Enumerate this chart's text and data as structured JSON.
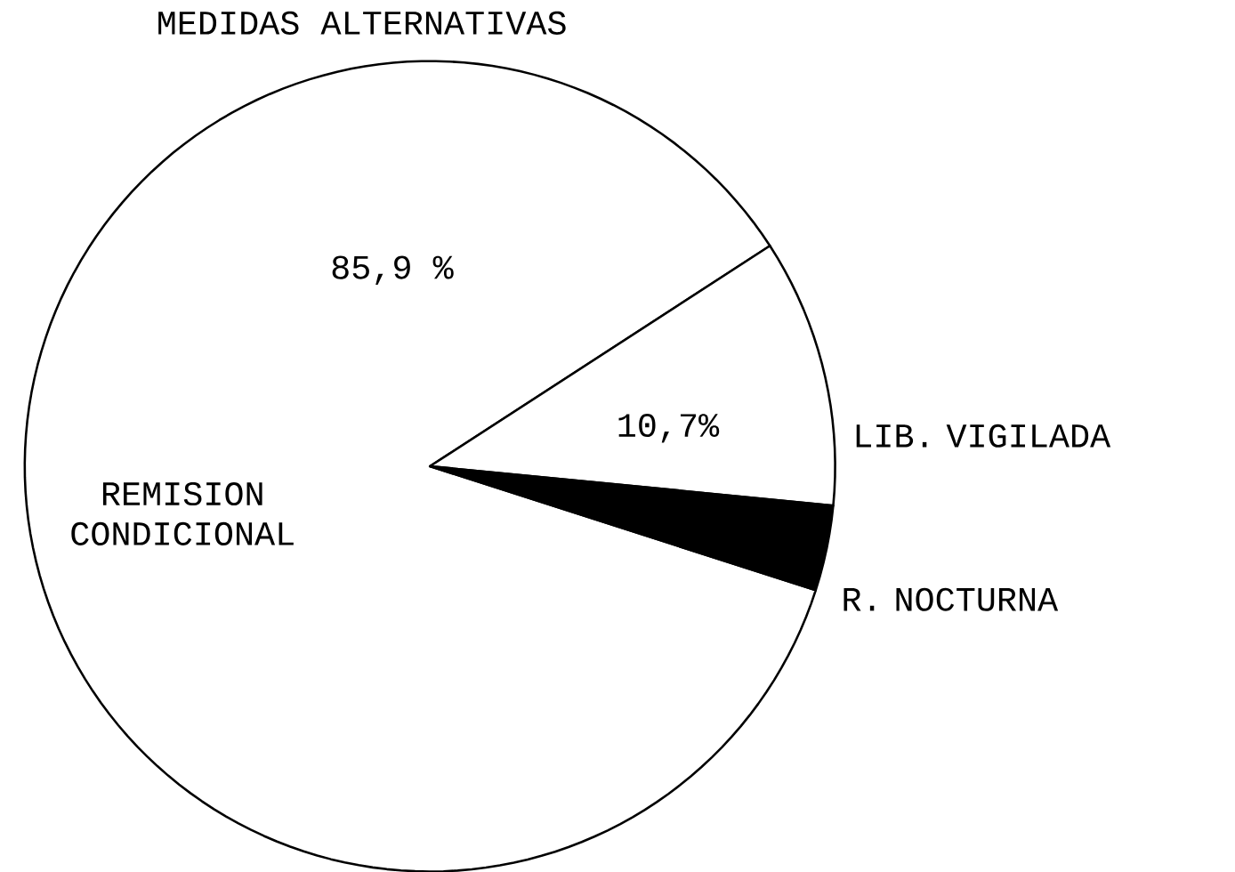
{
  "chart_data": {
    "type": "pie",
    "title": "MEDIDAS ALTERNATIVAS",
    "categories": [
      "REMISION CONDICIONAL",
      "LIB. VIGILADA",
      "R. NOCTURNA"
    ],
    "values": [
      85.9,
      10.7,
      3.4
    ],
    "value_labels": [
      "85,9 %",
      "10,7%",
      null
    ],
    "colors": [
      "#ffffff",
      "#ffffff",
      "#000000"
    ]
  }
}
